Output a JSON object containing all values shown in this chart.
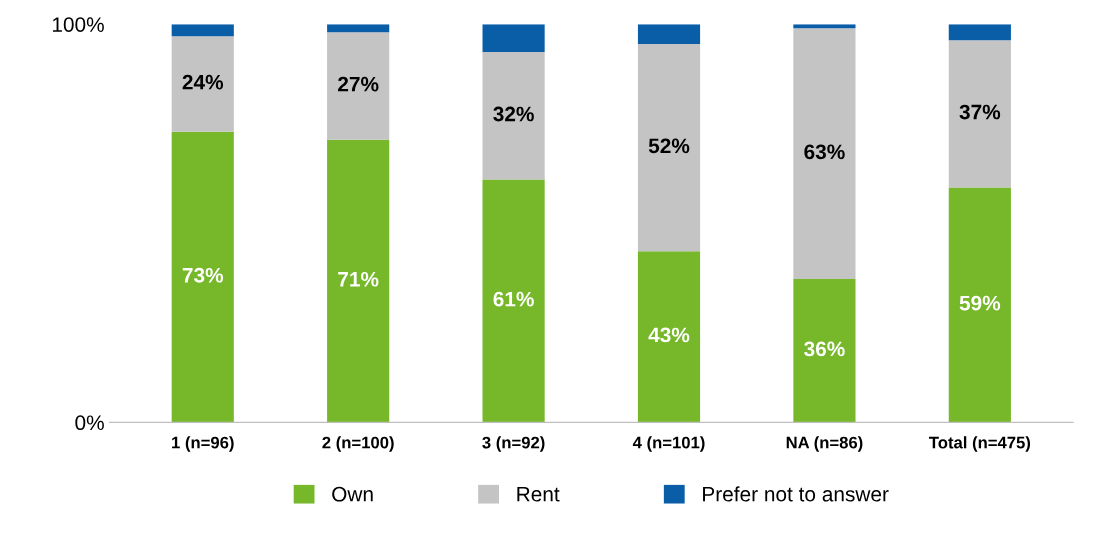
{
  "chart_data": {
    "type": "bar",
    "stacked": true,
    "categories": [
      "1 (n=96)",
      "2 (n=100)",
      "3 (n=92)",
      "4 (n=101)",
      "NA (n=86)",
      "Total (n=475)"
    ],
    "series": [
      {
        "name": "Own",
        "color": "#77b82a",
        "values": [
          73,
          71,
          61,
          43,
          36,
          59
        ],
        "value_labels": [
          "73%",
          "71%",
          "61%",
          "43%",
          "36%",
          "59%"
        ]
      },
      {
        "name": "Rent",
        "color": "#c4c4c4",
        "values": [
          24,
          27,
          32,
          52,
          63,
          37
        ],
        "value_labels": [
          "24%",
          "27%",
          "32%",
          "52%",
          "63%",
          "37%"
        ]
      },
      {
        "name": "Prefer not to answer",
        "color": "#0a5ea8",
        "values": [
          3,
          2,
          7,
          5,
          1,
          4
        ]
      }
    ],
    "ylim": [
      0,
      100
    ],
    "yticks": [
      {
        "value": 0,
        "label": "0%"
      },
      {
        "value": 100,
        "label": "100%"
      }
    ],
    "grid": false,
    "legend": "bottom"
  }
}
